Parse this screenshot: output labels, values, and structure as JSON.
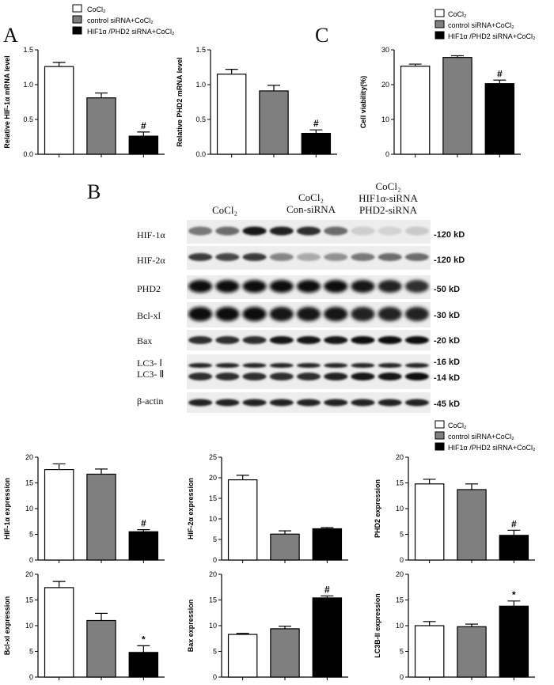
{
  "panel_labels": {
    "a": "A",
    "b": "B",
    "c": "C"
  },
  "legend": {
    "entries": [
      {
        "label": "CoCl₂",
        "color": "#ffffff"
      },
      {
        "label": "control siRNA+CoCl₂",
        "color": "#7f7f7f"
      },
      {
        "label": "HIF1α /PHD2 siRNA+CoCl₂",
        "color": "#000000"
      }
    ]
  },
  "blot": {
    "lane_groups": [
      {
        "lines": [
          "CoCl₂"
        ]
      },
      {
        "lines": [
          "CoCl₂",
          "Con-siRNA"
        ]
      },
      {
        "lines": [
          "CoCl₂",
          "HIF1α-siRNA",
          "PHD2-siRNA"
        ]
      }
    ],
    "rows": [
      {
        "label": "HIF-1α",
        "kd": "-120 kD"
      },
      {
        "label": "HIF-2α",
        "kd": "-120 kD"
      },
      {
        "label": "PHD2",
        "kd": "-50 kD"
      },
      {
        "label": "Bcl-xl",
        "kd": "-30 kD"
      },
      {
        "label": "Bax",
        "kd": "-20 kD"
      },
      {
        "label": "LC3- Ⅰ",
        "kd": "-16 kD"
      },
      {
        "label": "LC3- Ⅱ",
        "kd": "-14 kD"
      },
      {
        "label": "β-actin",
        "kd": "-45 kD"
      }
    ]
  },
  "chart_data": [
    {
      "id": "hif1a-mrna",
      "type": "bar",
      "categories": [
        "CoCl₂",
        "control siRNA+CoCl₂",
        "HIF1α /PHD2 siRNA+CoCl₂"
      ],
      "values": [
        1.26,
        0.81,
        0.26
      ],
      "errors": [
        0.06,
        0.07,
        0.06
      ],
      "ylabel": "Relative HIF-1α mRNA level",
      "ylim": [
        0,
        1.5
      ],
      "yticks": [
        "0.0",
        "0.5",
        "1.0",
        "1.5"
      ],
      "annotations": [
        "",
        "",
        "#"
      ]
    },
    {
      "id": "phd2-mrna",
      "type": "bar",
      "categories": [
        "CoCl₂",
        "control siRNA+CoCl₂",
        "HIF1α /PHD2 siRNA+CoCl₂"
      ],
      "values": [
        1.15,
        0.91,
        0.3
      ],
      "errors": [
        0.07,
        0.08,
        0.05
      ],
      "ylabel": "Relative PHD2 mRNA level",
      "ylim": [
        0,
        1.5
      ],
      "yticks": [
        "0.0",
        "0.5",
        "1.0",
        "1.5"
      ],
      "annotations": [
        "",
        "",
        "#"
      ]
    },
    {
      "id": "cell-viability",
      "type": "bar",
      "categories": [
        "CoCl₂",
        "control siRNA+CoCl₂",
        "HIF1α /PHD2 siRNA+CoCl₂"
      ],
      "values": [
        25.3,
        27.8,
        20.3
      ],
      "errors": [
        0.6,
        0.5,
        1.0
      ],
      "ylabel": "Cell viability(%)",
      "ylim": [
        0,
        30
      ],
      "yticks": [
        "0",
        "10",
        "20",
        "30"
      ],
      "annotations": [
        "",
        "",
        "#"
      ]
    },
    {
      "id": "hif1a-expr",
      "type": "bar",
      "categories": [
        "CoCl₂",
        "control siRNA+CoCl₂",
        "HIF1α /PHD2 siRNA+CoCl₂"
      ],
      "values": [
        17.6,
        16.7,
        5.5
      ],
      "errors": [
        1.1,
        1.0,
        0.4
      ],
      "ylabel": "HIF-1α expression",
      "ylim": [
        0,
        20
      ],
      "yticks": [
        "0",
        "5",
        "10",
        "15",
        "20"
      ],
      "annotations": [
        "",
        "",
        "#"
      ]
    },
    {
      "id": "hif2a-expr",
      "type": "bar",
      "categories": [
        "CoCl₂",
        "control siRNA+CoCl₂",
        "HIF1α /PHD2 siRNA+CoCl₂"
      ],
      "values": [
        19.5,
        6.3,
        7.6
      ],
      "errors": [
        1.1,
        0.8,
        0.3
      ],
      "ylabel": "HIF-2α expression",
      "ylim": [
        0,
        25
      ],
      "yticks": [
        "0",
        "5",
        "10",
        "15",
        "20",
        "25"
      ],
      "annotations": [
        "",
        "",
        ""
      ]
    },
    {
      "id": "phd2-expr",
      "type": "bar",
      "categories": [
        "CoCl₂",
        "control siRNA+CoCl₂",
        "HIF1α /PHD2 siRNA+CoCl₂"
      ],
      "values": [
        14.8,
        13.7,
        4.8
      ],
      "errors": [
        0.9,
        1.1,
        1.0
      ],
      "ylabel": "PHD2 expression",
      "ylim": [
        0,
        20
      ],
      "yticks": [
        "0",
        "5",
        "10",
        "15",
        "20"
      ],
      "annotations": [
        "",
        "",
        "#"
      ]
    },
    {
      "id": "bclxl-expr",
      "type": "bar",
      "categories": [
        "CoCl₂",
        "control siRNA+CoCl₂",
        "HIF1α /PHD2 siRNA+CoCl₂"
      ],
      "values": [
        17.4,
        11.0,
        4.8
      ],
      "errors": [
        1.2,
        1.4,
        1.3
      ],
      "ylabel": "Bcl-xl expression",
      "ylim": [
        0,
        20
      ],
      "yticks": [
        "0",
        "5",
        "10",
        "15",
        "20"
      ],
      "annotations": [
        "",
        "",
        "*"
      ]
    },
    {
      "id": "bax-expr",
      "type": "bar",
      "categories": [
        "CoCl₂",
        "control siRNA+CoCl₂",
        "HIF1α /PHD2 siRNA+CoCl₂"
      ],
      "values": [
        8.3,
        9.4,
        15.4
      ],
      "errors": [
        0.2,
        0.5,
        0.4
      ],
      "ylabel": "Bax expression",
      "ylim": [
        0,
        20
      ],
      "yticks": [
        "0",
        "5",
        "10",
        "15",
        "20"
      ],
      "annotations": [
        "",
        "",
        "#"
      ]
    },
    {
      "id": "lc3b-expr",
      "type": "bar",
      "categories": [
        "CoCl₂",
        "control siRNA+CoCl₂",
        "HIF1α /PHD2 siRNA+CoCl₂"
      ],
      "values": [
        10.0,
        9.8,
        13.8
      ],
      "errors": [
        0.8,
        0.5,
        1.0
      ],
      "ylabel": "LC3B-II expression",
      "ylim": [
        0,
        20
      ],
      "yticks": [
        "0",
        "5",
        "10",
        "15",
        "20"
      ],
      "annotations": [
        "",
        "",
        "*"
      ]
    }
  ]
}
